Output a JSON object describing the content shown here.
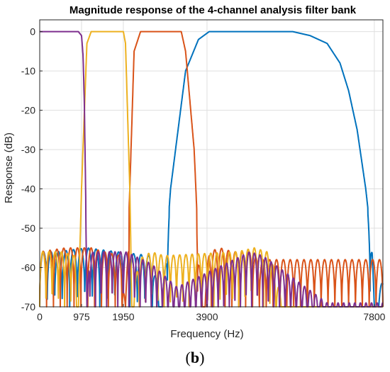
{
  "chart_data": {
    "type": "line",
    "title": "Magnitude response of the 4-channel analysis filter bank",
    "xlabel": "Frequency (Hz)",
    "ylabel": "Response (dB)",
    "xlim": [
      0,
      8000
    ],
    "ylim": [
      -70,
      3
    ],
    "xticks": [
      0,
      975,
      1950,
      3900,
      7800
    ],
    "xtick_labels": [
      "0",
      "975",
      "1950",
      "3900",
      "7800"
    ],
    "yticks": [
      0,
      -10,
      -20,
      -30,
      -40,
      -50,
      -60,
      -70
    ],
    "ytick_labels": [
      "0",
      "-10",
      "-20",
      "-30",
      "-40",
      "-50",
      "-60",
      "-70"
    ],
    "grid": true,
    "legend": false,
    "series": [
      {
        "color": "#7E2F8E",
        "passband": [
          0,
          975
        ],
        "response": [
          [
            0,
            0
          ],
          [
            900,
            0
          ],
          [
            975,
            -1
          ],
          [
            1010,
            -6
          ],
          [
            1040,
            -18
          ],
          [
            1070,
            -40
          ],
          [
            1100,
            -70
          ],
          [
            1150,
            -57
          ],
          [
            1250,
            -56
          ],
          [
            1400,
            -56
          ],
          [
            1600,
            -56
          ],
          [
            1800,
            -56
          ],
          [
            2000,
            -56
          ],
          [
            2200,
            -57
          ],
          [
            2400,
            -58
          ],
          [
            2600,
            -59
          ],
          [
            2800,
            -61
          ],
          [
            3000,
            -63
          ],
          [
            3200,
            -65
          ],
          [
            4900,
            -56
          ],
          [
            5200,
            -57
          ],
          [
            5450,
            -59
          ],
          [
            5700,
            -61
          ],
          [
            5950,
            -63
          ],
          [
            6200,
            -65
          ],
          [
            6450,
            -67
          ],
          [
            6700,
            -69
          ]
        ]
      },
      {
        "color": "#EDB120",
        "passband": [
          1300,
          1950
        ],
        "response": [
          [
            0,
            -56
          ],
          [
            500,
            -56
          ],
          [
            820,
            -57
          ],
          [
            900,
            -70
          ],
          [
            975,
            -40
          ],
          [
            1100,
            -3
          ],
          [
            1200,
            0
          ],
          [
            1950,
            0
          ],
          [
            2000,
            -3
          ],
          [
            2100,
            -40
          ],
          [
            2150,
            -70
          ],
          [
            2300,
            -58
          ],
          [
            2600,
            -56
          ],
          [
            2900,
            -57
          ],
          [
            4600,
            -56
          ],
          [
            5000,
            -55
          ],
          [
            5300,
            -56
          ],
          [
            5400,
            -58
          ],
          [
            5700,
            -70
          ]
        ]
      },
      {
        "color": "#D95319",
        "passband": [
          2200,
          3200
        ],
        "response": [
          [
            0,
            -56
          ],
          [
            600,
            -55
          ],
          [
            1200,
            -55
          ],
          [
            1500,
            -56
          ],
          [
            1900,
            -57
          ],
          [
            2000,
            -70
          ],
          [
            2100,
            -40
          ],
          [
            2200,
            -5
          ],
          [
            2350,
            0
          ],
          [
            3300,
            0
          ],
          [
            3400,
            -5
          ],
          [
            3600,
            -30
          ],
          [
            3700,
            -55
          ],
          [
            3800,
            -70
          ],
          [
            3950,
            -56
          ],
          [
            4200,
            -55
          ],
          [
            4500,
            -56
          ],
          [
            4900,
            -56
          ],
          [
            5100,
            -58
          ]
        ]
      },
      {
        "color": "#0072BD",
        "passband": [
          4600,
          7200
        ],
        "response": [
          [
            0,
            -56
          ],
          [
            400,
            -56
          ],
          [
            1100,
            -55
          ],
          [
            1800,
            -56
          ],
          [
            2600,
            -57
          ],
          [
            2850,
            -70
          ],
          [
            3050,
            -40
          ],
          [
            3400,
            -10
          ],
          [
            3700,
            -2
          ],
          [
            3950,
            0
          ],
          [
            5900,
            0
          ],
          [
            6300,
            -1
          ],
          [
            6700,
            -3
          ],
          [
            7000,
            -8
          ],
          [
            7200,
            -15
          ],
          [
            7400,
            -25
          ],
          [
            7600,
            -40
          ],
          [
            7750,
            -55
          ],
          [
            7800,
            -70
          ],
          [
            8000,
            -63
          ]
        ]
      }
    ]
  },
  "caption": {
    "open": "(",
    "letter": "b",
    "close": ")"
  }
}
